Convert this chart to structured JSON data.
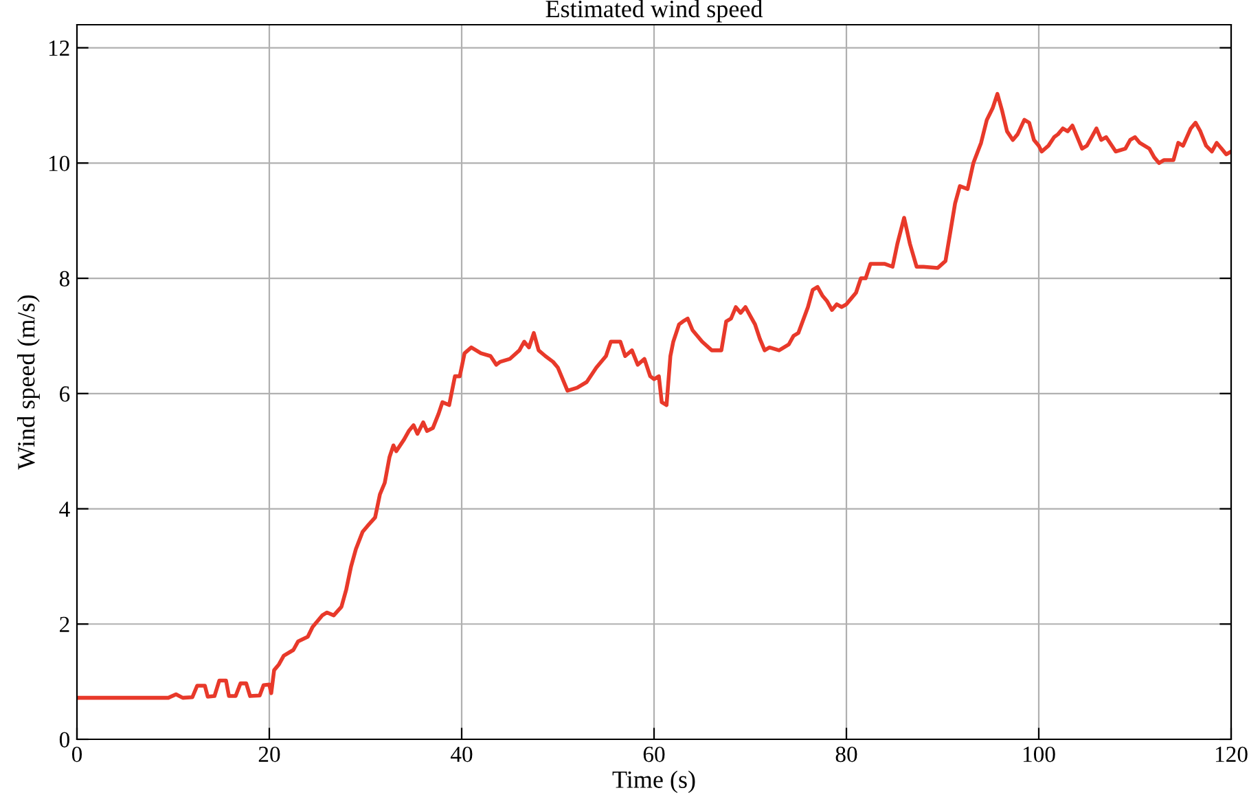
{
  "chart_data": {
    "type": "line",
    "title": "Estimated wind speed",
    "xlabel": "Time (s)",
    "ylabel": "Wind speed (m/s)",
    "xlim": [
      0,
      120
    ],
    "xticks": [
      0,
      20,
      40,
      60,
      80,
      100,
      120
    ],
    "ylim": [
      0,
      12.4
    ],
    "yticks": [
      0,
      2,
      4,
      6,
      8,
      10,
      12
    ],
    "grid": true,
    "marker": "none",
    "line_style": "solid",
    "series": [
      {
        "color": "#e8392a",
        "x": [
          0,
          9.5,
          10.3,
          11,
          12,
          12.5,
          13.3,
          13.6,
          14.3,
          14.8,
          15.5,
          15.8,
          16.5,
          17,
          17.6,
          18,
          19,
          19.4,
          20,
          20.2,
          20.5,
          21,
          21.5,
          22.5,
          23,
          24,
          24.5,
          25.5,
          26,
          26.7,
          27.5,
          28,
          28.5,
          29,
          29.7,
          30.2,
          31,
          31.5,
          32,
          32.5,
          32.9,
          33.2,
          34,
          34.5,
          35,
          35.4,
          36,
          36.4,
          37,
          37.6,
          38,
          38.7,
          39.3,
          39.8,
          40.3,
          41,
          42,
          43,
          43.6,
          44,
          45,
          46,
          46.5,
          47,
          47.5,
          48,
          48.7,
          49.5,
          50,
          51,
          52,
          53,
          54,
          55,
          55.5,
          56.5,
          57,
          57.7,
          58.3,
          59,
          59.6,
          60,
          60.5,
          60.8,
          61.3,
          61.7,
          62,
          62.6,
          63,
          63.5,
          64,
          65,
          66,
          67,
          67.5,
          68,
          68.5,
          69,
          69.5,
          70,
          70.5,
          71,
          71.5,
          72,
          73,
          74,
          74.5,
          75,
          76,
          76.5,
          77,
          77.5,
          78,
          78.5,
          79,
          79.5,
          80,
          80.5,
          81,
          81.5,
          82,
          82.5,
          84,
          84.8,
          85.3,
          86,
          86.6,
          87.3,
          88,
          89.5,
          90.3,
          90.8,
          91.3,
          91.8,
          92.6,
          93.2,
          94,
          94.6,
          95.2,
          95.7,
          96.2,
          96.7,
          97.3,
          97.8,
          98.5,
          99,
          99.5,
          100,
          100.3,
          101,
          101.6,
          102,
          102.5,
          103,
          103.5,
          104,
          104.5,
          105,
          105.5,
          106,
          106.5,
          107,
          108,
          109,
          109.5,
          110,
          110.5,
          111,
          111.5,
          112,
          112.5,
          113,
          114,
          114.5,
          115,
          115.8,
          116.3,
          116.8,
          117.4,
          118,
          118.5,
          119,
          119.5,
          120
        ],
        "values": [
          0.72,
          0.72,
          0.78,
          0.72,
          0.73,
          0.93,
          0.93,
          0.74,
          0.75,
          1.02,
          1.02,
          0.75,
          0.75,
          0.97,
          0.97,
          0.75,
          0.76,
          0.94,
          0.95,
          0.8,
          1.2,
          1.3,
          1.45,
          1.55,
          1.7,
          1.78,
          1.95,
          2.15,
          2.2,
          2.15,
          2.3,
          2.6,
          3.0,
          3.3,
          3.6,
          3.7,
          3.85,
          4.25,
          4.45,
          4.9,
          5.1,
          5.0,
          5.2,
          5.35,
          5.45,
          5.3,
          5.5,
          5.35,
          5.4,
          5.65,
          5.85,
          5.8,
          6.3,
          6.3,
          6.7,
          6.8,
          6.7,
          6.65,
          6.5,
          6.55,
          6.6,
          6.75,
          6.9,
          6.8,
          7.05,
          6.75,
          6.65,
          6.55,
          6.45,
          6.05,
          6.1,
          6.2,
          6.45,
          6.65,
          6.9,
          6.9,
          6.65,
          6.75,
          6.5,
          6.6,
          6.3,
          6.25,
          6.3,
          5.85,
          5.8,
          6.65,
          6.9,
          7.2,
          7.25,
          7.3,
          7.1,
          6.9,
          6.75,
          6.75,
          7.25,
          7.3,
          7.5,
          7.4,
          7.5,
          7.35,
          7.2,
          6.95,
          6.75,
          6.8,
          6.75,
          6.85,
          7.0,
          7.05,
          7.5,
          7.8,
          7.85,
          7.7,
          7.6,
          7.45,
          7.55,
          7.5,
          7.55,
          7.65,
          7.75,
          8.0,
          8.0,
          8.25,
          8.25,
          8.2,
          8.6,
          9.05,
          8.6,
          8.2,
          8.2,
          8.18,
          8.3,
          8.8,
          9.3,
          9.6,
          9.55,
          10.0,
          10.35,
          10.75,
          10.95,
          11.2,
          10.9,
          10.55,
          10.4,
          10.5,
          10.75,
          10.7,
          10.4,
          10.3,
          10.2,
          10.3,
          10.45,
          10.5,
          10.6,
          10.55,
          10.65,
          10.45,
          10.25,
          10.3,
          10.45,
          10.6,
          10.4,
          10.45,
          10.2,
          10.25,
          10.4,
          10.45,
          10.35,
          10.3,
          10.25,
          10.1,
          10.0,
          10.05,
          10.05,
          10.35,
          10.3,
          10.6,
          10.7,
          10.55,
          10.3,
          10.2,
          10.35,
          10.25,
          10.15,
          10.2
        ]
      }
    ]
  }
}
